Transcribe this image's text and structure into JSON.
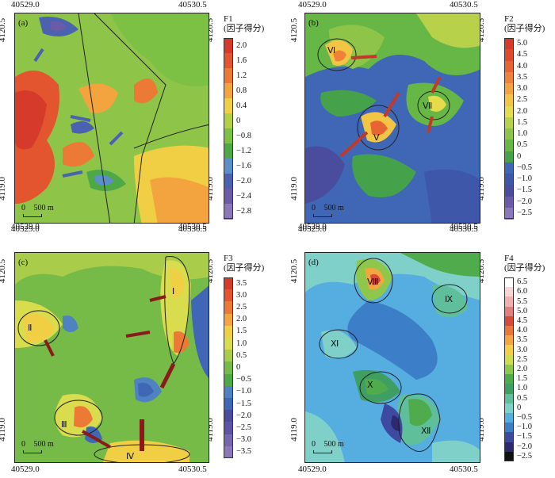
{
  "coords": {
    "x_left": "40529.0",
    "x_right": "40530.5",
    "y_top": "4120.5",
    "y_bottom": "4119.0"
  },
  "scale_bar": {
    "zero": "0",
    "label": "500 m"
  },
  "panels": [
    {
      "id": "a",
      "label": "(a)",
      "factor": "F1",
      "factor_cn": "(因子得分)",
      "colorbar": {
        "ticks": [
          "2.0",
          "1.6",
          "1.2",
          "0.8",
          "0.4",
          "0",
          "−0.8",
          "−1.2",
          "−1.6",
          "−2.0",
          "−2.4",
          "−2.8"
        ],
        "colors": [
          "#d63a2b",
          "#e3552f",
          "#ec7a36",
          "#f3a43e",
          "#f1cf45",
          "#b5cf45",
          "#7cc044",
          "#4fa846",
          "#5b8fc7",
          "#4a62b0",
          "#6a5aa8",
          "#8a78b8"
        ]
      }
    },
    {
      "id": "b",
      "label": "(b)",
      "factor": "F2",
      "factor_cn": "(因子得分)",
      "zones": [
        "Ⅵ",
        "Ⅴ",
        "Ⅶ"
      ],
      "colorbar": {
        "ticks": [
          "5.0",
          "4.5",
          "4.0",
          "3.5",
          "3.0",
          "2.5",
          "2.0",
          "1.5",
          "1.0",
          "0.5",
          "0",
          "−0.5",
          "−1.0",
          "−1.5",
          "−2.0",
          "−2.5"
        ],
        "colors": [
          "#d63a2b",
          "#df4a2e",
          "#e86433",
          "#ef8238",
          "#f4a43f",
          "#f3c545",
          "#e5dc4b",
          "#b8d14a",
          "#8ec548",
          "#67b747",
          "#46a24a",
          "#3f67b5",
          "#3f57a8",
          "#4a4d9e",
          "#6a5aa8",
          "#8a78b8"
        ]
      }
    },
    {
      "id": "c",
      "label": "(c)",
      "factor": "F3",
      "factor_cn": "(因子得分)",
      "zones": [
        "Ⅰ",
        "Ⅱ",
        "Ⅲ",
        "Ⅳ"
      ],
      "colorbar": {
        "ticks": [
          "3.5",
          "3.0",
          "2.5",
          "2.0",
          "1.5",
          "1.0",
          "0.5",
          "0",
          "−0.5",
          "−1.0",
          "−1.5",
          "−2.0",
          "−2.5",
          "−3.0",
          "−3.5"
        ],
        "colors": [
          "#d63a2b",
          "#e3552f",
          "#ec7a36",
          "#f3a43e",
          "#f1cf45",
          "#d9dc4c",
          "#a9cd4a",
          "#76ba47",
          "#4fa846",
          "#4f82c0",
          "#3f67b5",
          "#4a4d9e",
          "#5d55a3",
          "#7566ae",
          "#8a78b8"
        ]
      }
    },
    {
      "id": "d",
      "label": "(d)",
      "factor": "F4",
      "factor_cn": "(因子得分)",
      "zones": [
        "Ⅷ",
        "Ⅸ",
        "Ⅺ",
        "Ⅹ",
        "Ⅻ"
      ],
      "colorbar": {
        "ticks": [
          "6.5",
          "6.0",
          "5.5",
          "5.0",
          "4.5",
          "4.0",
          "3.5",
          "3.0",
          "2.5",
          "2.0",
          "1.5",
          "1.0",
          "0.5",
          "0",
          "−0.5",
          "−1.0",
          "−1.5",
          "−2.0",
          "−2.5"
        ],
        "colors": [
          "#ffffff",
          "#f7d6d6",
          "#eeb0b0",
          "#e37e7e",
          "#d64a3a",
          "#e8783a",
          "#f2a640",
          "#f3cf46",
          "#cfdc4d",
          "#8fc74a",
          "#4fab4c",
          "#3f9f62",
          "#5fbf9a",
          "#7fd0c8",
          "#56aee0",
          "#3d7ec8",
          "#3e4aa0",
          "#2b2a70",
          "#111111"
        ]
      }
    }
  ]
}
